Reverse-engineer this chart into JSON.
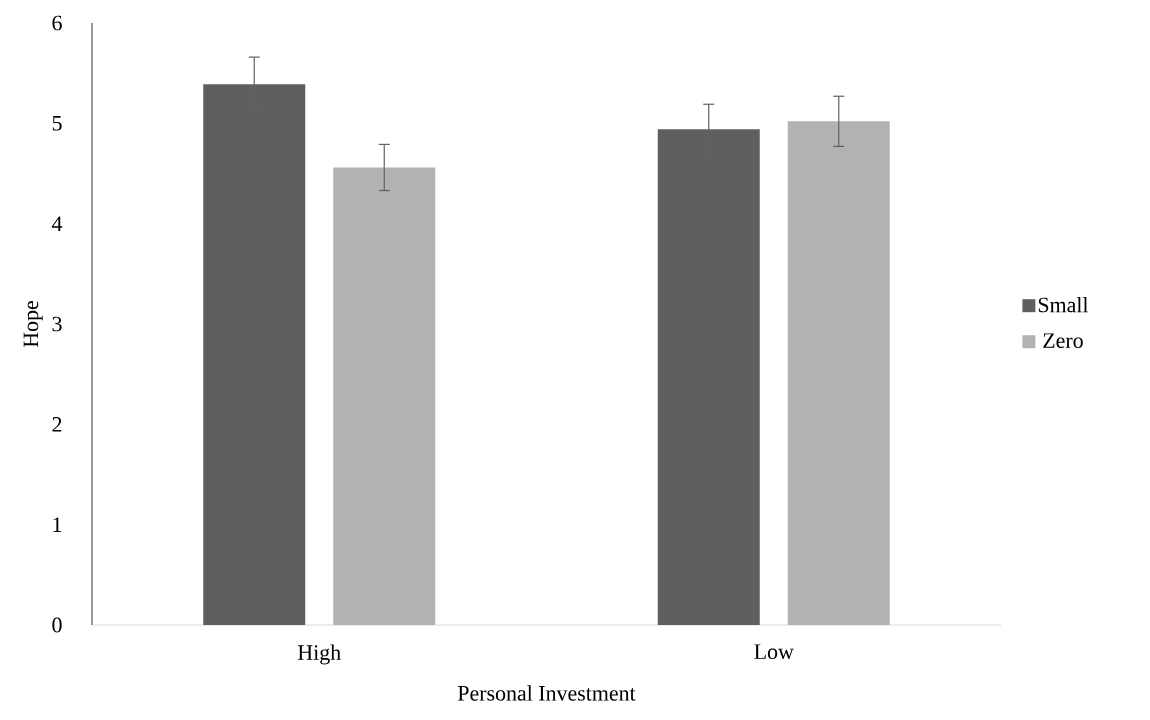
{
  "chart_data": {
    "type": "bar",
    "xlabel": "Personal Investment",
    "ylabel": "Hope",
    "categories": [
      "High",
      "Low"
    ],
    "series": [
      {
        "name": "Small",
        "color": "#5f5f5f",
        "values": [
          5.39,
          4.94
        ],
        "errors": [
          0.27,
          0.25
        ]
      },
      {
        "name": "Zero",
        "color": "#b2b2b2",
        "values": [
          4.56,
          5.02
        ],
        "errors": [
          0.23,
          0.25
        ]
      }
    ],
    "ylim": [
      0,
      6
    ],
    "yticks": [
      0,
      1,
      2,
      3,
      4,
      5,
      6
    ],
    "grid": false,
    "legend": "right"
  }
}
